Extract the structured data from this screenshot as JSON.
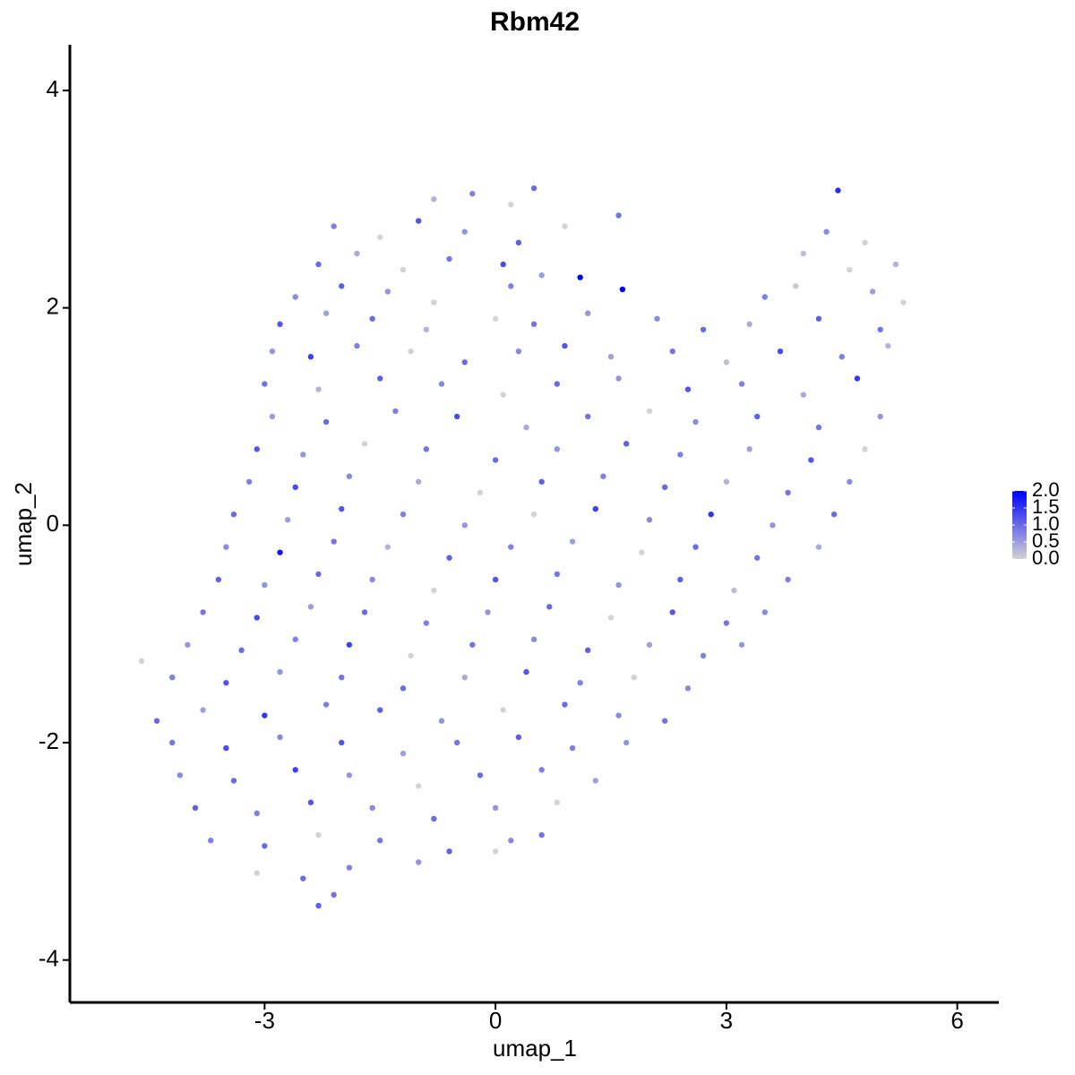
{
  "chart_data": {
    "type": "scatter",
    "title": "Rbm42",
    "x_label": "umap_1",
    "y_label": "umap_2",
    "xlim": [
      -5.53,
      6.54
    ],
    "ylim": [
      -4.39,
      4.42
    ],
    "xticks": [
      -3,
      0,
      3,
      6
    ],
    "yticks": [
      -4,
      -2,
      0,
      2,
      4
    ],
    "color_low": "#d3d3d3",
    "color_high": "#0000ff",
    "colorbar_lim": [
      0,
      2
    ],
    "colorbar_ticks": [
      {
        "value": 0,
        "label": "0.0"
      },
      {
        "value": 0.5,
        "label": "0.5"
      },
      {
        "value": 1,
        "label": "1.0"
      },
      {
        "value": 1.5,
        "label": "1.5"
      },
      {
        "value": 2,
        "label": "2.0"
      }
    ],
    "x": [
      -0.8,
      -0.3,
      0.2,
      0.5,
      4.45,
      -2.1,
      -1.5,
      -1.0,
      -0.4,
      0.3,
      0.9,
      1.6,
      4.3,
      4.8,
      -2.3,
      -1.8,
      -1.2,
      -0.6,
      0.1,
      0.6,
      4.0,
      4.6,
      5.2,
      -2.6,
      -2.0,
      -1.4,
      -0.8,
      0.2,
      1.1,
      1.65,
      3.5,
      3.9,
      4.9,
      5.3,
      -2.8,
      -2.2,
      -1.6,
      -0.9,
      0.0,
      0.5,
      1.2,
      2.1,
      2.7,
      3.3,
      4.2,
      5.0,
      -2.9,
      -2.4,
      -1.8,
      -1.1,
      -0.4,
      0.3,
      0.9,
      1.5,
      2.3,
      3.0,
      3.7,
      4.5,
      5.1,
      -3.0,
      -2.3,
      -1.5,
      -0.7,
      0.1,
      0.8,
      1.6,
      2.5,
      3.2,
      4.0,
      4.7,
      -2.9,
      -2.2,
      -1.3,
      -0.5,
      0.4,
      1.2,
      2.0,
      2.6,
      3.4,
      4.2,
      5.0,
      -3.1,
      -2.5,
      -1.7,
      -0.9,
      0.0,
      0.8,
      1.7,
      2.4,
      3.3,
      4.1,
      4.8,
      -3.2,
      -2.6,
      -1.9,
      -1.0,
      -0.2,
      0.6,
      1.4,
      2.2,
      3.0,
      3.8,
      4.6,
      -3.4,
      -2.7,
      -2.0,
      -1.2,
      -0.4,
      0.5,
      1.3,
      2.0,
      2.8,
      3.6,
      4.4,
      -3.5,
      -2.8,
      -2.1,
      -1.4,
      -0.6,
      0.2,
      1.0,
      1.9,
      2.6,
      3.4,
      4.2,
      -3.6,
      -3.0,
      -2.3,
      -1.6,
      -0.8,
      0.0,
      0.8,
      1.6,
      2.4,
      3.1,
      3.8,
      -3.8,
      -3.1,
      -2.4,
      -1.7,
      -0.9,
      -0.1,
      0.7,
      1.5,
      2.3,
      3.0,
      3.5,
      -4.0,
      -3.3,
      -2.6,
      -1.9,
      -1.1,
      -0.3,
      0.5,
      1.2,
      2.0,
      2.7,
      3.2,
      -4.6,
      -4.2,
      -3.5,
      -2.8,
      -2.0,
      -1.2,
      -0.4,
      0.4,
      1.1,
      1.8,
      2.5,
      -4.4,
      -3.8,
      -3.0,
      -2.2,
      -1.5,
      -0.7,
      0.1,
      0.9,
      1.6,
      2.2,
      -4.2,
      -3.5,
      -2.8,
      -2.0,
      -1.2,
      -0.5,
      0.3,
      1.0,
      1.7,
      -4.1,
      -3.4,
      -2.6,
      -1.9,
      -1.0,
      -0.2,
      0.6,
      1.3,
      -3.9,
      -3.1,
      -2.4,
      -1.6,
      -0.8,
      0.0,
      0.8,
      -3.7,
      -3.0,
      -2.3,
      -1.5,
      -0.6,
      0.2,
      0.6,
      -3.1,
      -2.5,
      -1.9,
      -1.0,
      0.0,
      -2.3,
      -2.1
    ],
    "y": [
      3.0,
      3.05,
      2.95,
      3.1,
      3.08,
      2.75,
      2.65,
      2.8,
      2.7,
      2.6,
      2.75,
      2.85,
      2.7,
      2.6,
      2.4,
      2.5,
      2.35,
      2.45,
      2.4,
      2.3,
      2.5,
      2.35,
      2.4,
      2.1,
      2.2,
      2.15,
      2.05,
      2.2,
      2.28,
      2.17,
      2.1,
      2.2,
      2.15,
      2.05,
      1.85,
      1.95,
      1.9,
      1.8,
      1.9,
      1.85,
      1.95,
      1.9,
      1.8,
      1.85,
      1.9,
      1.8,
      1.6,
      1.55,
      1.65,
      1.6,
      1.5,
      1.6,
      1.65,
      1.55,
      1.6,
      1.5,
      1.6,
      1.55,
      1.65,
      1.3,
      1.25,
      1.35,
      1.3,
      1.2,
      1.3,
      1.35,
      1.25,
      1.3,
      1.2,
      1.35,
      1.0,
      0.95,
      1.05,
      1.0,
      0.9,
      1.0,
      1.05,
      0.95,
      1.0,
      0.9,
      1.0,
      0.7,
      0.65,
      0.75,
      0.7,
      0.6,
      0.7,
      0.75,
      0.65,
      0.7,
      0.6,
      0.7,
      0.4,
      0.35,
      0.45,
      0.4,
      0.3,
      0.4,
      0.45,
      0.35,
      0.4,
      0.3,
      0.4,
      0.1,
      0.05,
      0.15,
      0.1,
      0,
      0.1,
      0.15,
      0.05,
      0.1,
      0,
      0.1,
      -0.2,
      -0.25,
      -0.15,
      -0.2,
      -0.3,
      -0.2,
      -0.15,
      -0.25,
      -0.2,
      -0.3,
      -0.2,
      -0.5,
      -0.55,
      -0.45,
      -0.5,
      -0.6,
      -0.5,
      -0.45,
      -0.55,
      -0.5,
      -0.6,
      -0.5,
      -0.8,
      -0.85,
      -0.75,
      -0.8,
      -0.9,
      -0.8,
      -0.75,
      -0.85,
      -0.8,
      -0.9,
      -0.8,
      -1.1,
      -1.15,
      -1.05,
      -1.1,
      -1.2,
      -1.1,
      -1.05,
      -1.15,
      -1.1,
      -1.2,
      -1.1,
      -1.25,
      -1.4,
      -1.45,
      -1.35,
      -1.4,
      -1.5,
      -1.4,
      -1.35,
      -1.45,
      -1.4,
      -1.5,
      -1.8,
      -1.7,
      -1.75,
      -1.65,
      -1.7,
      -1.8,
      -1.7,
      -1.65,
      -1.75,
      -1.8,
      -2.0,
      -2.05,
      -1.95,
      -2.0,
      -2.1,
      -2.0,
      -1.95,
      -2.05,
      -2.0,
      -2.3,
      -2.35,
      -2.25,
      -2.3,
      -2.4,
      -2.3,
      -2.25,
      -2.35,
      -2.6,
      -2.65,
      -2.55,
      -2.6,
      -2.7,
      -2.6,
      -2.55,
      -2.9,
      -2.95,
      -2.85,
      -2.9,
      -3.0,
      -2.9,
      -2.85,
      -3.2,
      -3.25,
      -3.15,
      -3.1,
      -3.0,
      -3.5,
      -3.4
    ],
    "values": [
      0.3,
      0.8,
      0,
      1.0,
      1.6,
      0.8,
      0,
      1.2,
      0.6,
      1.1,
      0,
      0.9,
      0.7,
      0,
      1.0,
      0.4,
      0,
      0.9,
      1.3,
      0.5,
      0.2,
      0,
      0.3,
      0.7,
      1.1,
      0.6,
      0,
      0.8,
      2.0,
      2.0,
      0.8,
      0.1,
      0.5,
      0,
      1.2,
      0.5,
      1.0,
      0.3,
      0,
      0.9,
      0.6,
      0.7,
      1.0,
      0.4,
      1.1,
      0.9,
      0.6,
      1.4,
      0.8,
      0,
      1.0,
      0.7,
      1.2,
      0.5,
      0.9,
      0.2,
      1.3,
      0.8,
      0.3,
      0.9,
      0.3,
      1.1,
      0.7,
      0,
      1.0,
      0.6,
      1.2,
      0.8,
      0.4,
      1.5,
      0.5,
      1.0,
      0.8,
      1.3,
      0.4,
      0.9,
      0,
      0.7,
      1.1,
      0.9,
      0.6,
      1.2,
      0.6,
      0,
      0.9,
      1.0,
      0.6,
      1.1,
      0.8,
      0.5,
      1.2,
      0,
      0.8,
      1.3,
      0.7,
      0.4,
      0,
      1.1,
      0.8,
      1.0,
      0.3,
      0.9,
      0.7,
      1.0,
      0.5,
      1.2,
      0.8,
      0.6,
      0,
      1.4,
      0.7,
      1.5,
      0.6,
      1.0,
      0.7,
      1.8,
      0.9,
      0.3,
      1.1,
      0.8,
      0.5,
      0,
      1.0,
      0.9,
      0.4,
      1.1,
      0.6,
      1.0,
      0.7,
      0,
      1.2,
      0.9,
      0.6,
      1.1,
      0.2,
      0.8,
      0.9,
      1.3,
      0.5,
      1.0,
      0.8,
      0.6,
      1.0,
      0,
      1.2,
      0.9,
      0.7,
      0.6,
      1.0,
      0.8,
      1.4,
      0,
      0.9,
      0.7,
      1.1,
      0.5,
      0.8,
      0.6,
      0,
      0.8,
      1.2,
      0.6,
      0.9,
      1.0,
      0.4,
      1.2,
      0.8,
      0,
      0.7,
      1.0,
      0.5,
      1.5,
      0.8,
      1.1,
      0.6,
      0,
      1.0,
      0.7,
      0.9,
      0.9,
      1.3,
      0.7,
      1.2,
      0.5,
      0.9,
      1.1,
      0.8,
      0.6,
      0.7,
      1.0,
      1.4,
      0.6,
      0,
      1.0,
      0.8,
      0.5,
      1.1,
      0.8,
      1.2,
      0.7,
      1.0,
      0.6,
      0,
      0.8,
      1.0,
      0,
      0.9,
      1.1,
      0.7,
      0.9,
      0,
      1.0,
      0.8,
      0.6,
      0,
      1.1,
      0.9
    ]
  }
}
